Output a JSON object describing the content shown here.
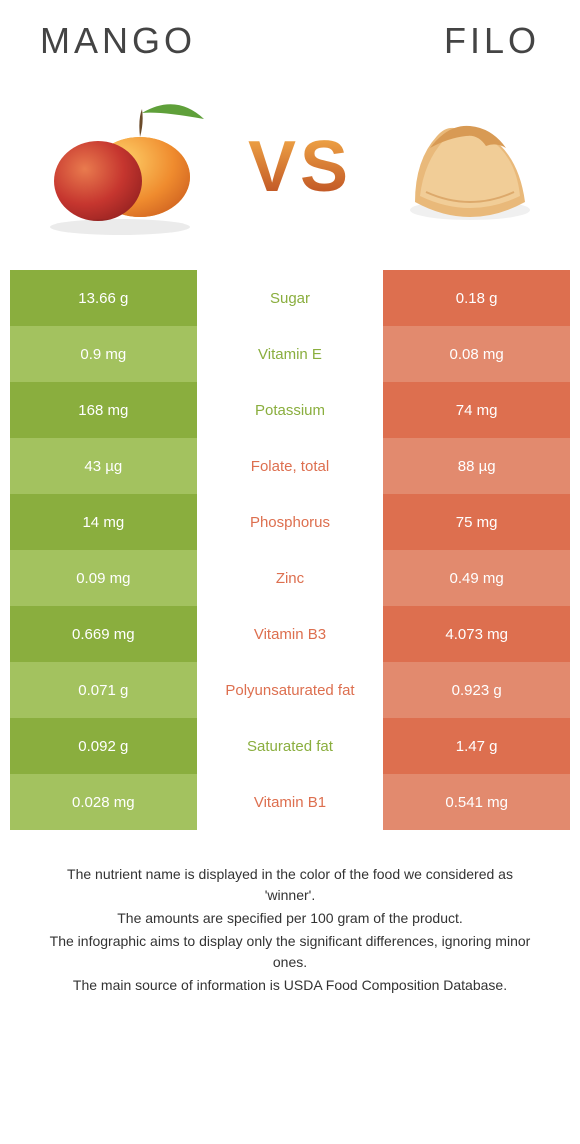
{
  "header": {
    "left_title": "MANGO",
    "right_title": "FILO",
    "vs_text": "VS"
  },
  "colors": {
    "green": "#8aae3e",
    "green_alt": "#a3c25f",
    "orange": "#dd6f4f",
    "orange_alt": "#e28a6e",
    "background": "#ffffff",
    "text_dark": "#333333"
  },
  "rows": [
    {
      "nutrient": "Sugar",
      "left": "13.66 g",
      "right": "0.18 g",
      "winner": "left"
    },
    {
      "nutrient": "Vitamin E",
      "left": "0.9 mg",
      "right": "0.08 mg",
      "winner": "left"
    },
    {
      "nutrient": "Potassium",
      "left": "168 mg",
      "right": "74 mg",
      "winner": "left"
    },
    {
      "nutrient": "Folate, total",
      "left": "43 µg",
      "right": "88 µg",
      "winner": "right"
    },
    {
      "nutrient": "Phosphorus",
      "left": "14 mg",
      "right": "75 mg",
      "winner": "right"
    },
    {
      "nutrient": "Zinc",
      "left": "0.09 mg",
      "right": "0.49 mg",
      "winner": "right"
    },
    {
      "nutrient": "Vitamin B3",
      "left": "0.669 mg",
      "right": "4.073 mg",
      "winner": "right"
    },
    {
      "nutrient": "Polyunsaturated fat",
      "left": "0.071 g",
      "right": "0.923 g",
      "winner": "right"
    },
    {
      "nutrient": "Saturated fat",
      "left": "0.092 g",
      "right": "1.47 g",
      "winner": "left"
    },
    {
      "nutrient": "Vitamin B1",
      "left": "0.028 mg",
      "right": "0.541 mg",
      "winner": "right"
    }
  ],
  "notes": [
    "The nutrient name is displayed in the color of the food we considered as 'winner'.",
    "The amounts are specified per 100 gram of the product.",
    "The infographic aims to display only the significant differences, ignoring minor ones.",
    "The main source of information is USDA Food Composition Database."
  ]
}
